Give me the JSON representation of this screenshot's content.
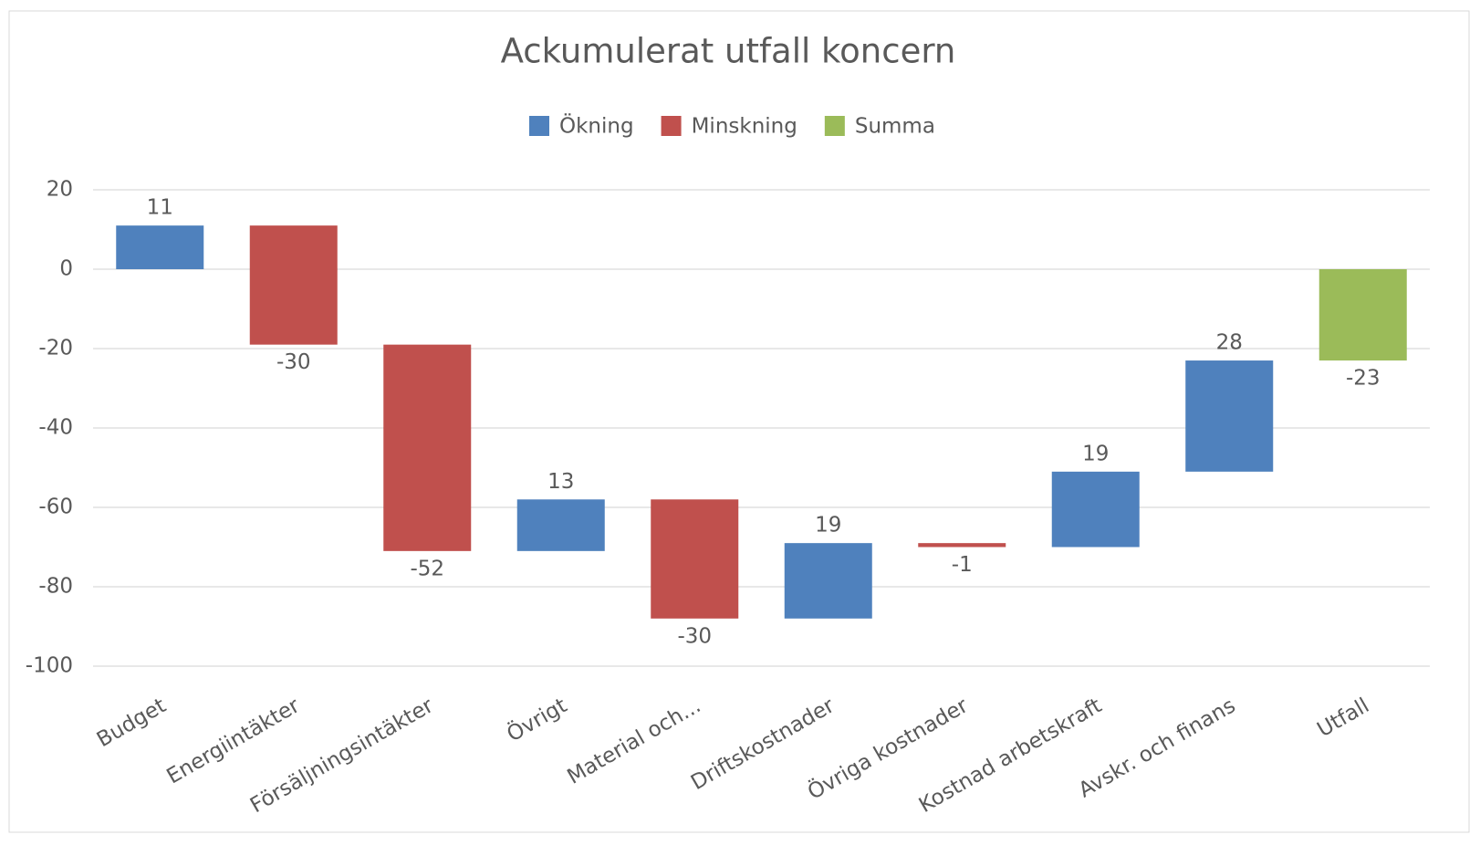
{
  "chart_data": {
    "type": "waterfall",
    "title": "Ackumulerat utfall koncern",
    "categories": [
      "Budget",
      "Energiintäkter",
      "Försäljningsintäkter",
      "Övrigt",
      "Material och...",
      "Driftskostnader",
      "Övriga kostnader",
      "Kostnad arbetskraft",
      "Avskr. och finans",
      "Utfall"
    ],
    "series": [
      {
        "name": "Ökning",
        "color": "#4f81bd",
        "values": [
          11,
          null,
          null,
          13,
          null,
          19,
          null,
          19,
          28,
          null
        ]
      },
      {
        "name": "Minskning",
        "color": "#c0504d",
        "values": [
          null,
          -30,
          -52,
          null,
          -30,
          null,
          -1,
          null,
          null,
          null
        ]
      },
      {
        "name": "Summa",
        "color": "#9bbb59",
        "total": true,
        "values": [
          null,
          null,
          null,
          null,
          null,
          null,
          null,
          null,
          null,
          -23
        ]
      }
    ],
    "ylim": [
      -100,
      20
    ],
    "yticks": [
      -100,
      -80,
      -60,
      -40,
      -20,
      0,
      20
    ],
    "grid": true,
    "legend": "top"
  }
}
